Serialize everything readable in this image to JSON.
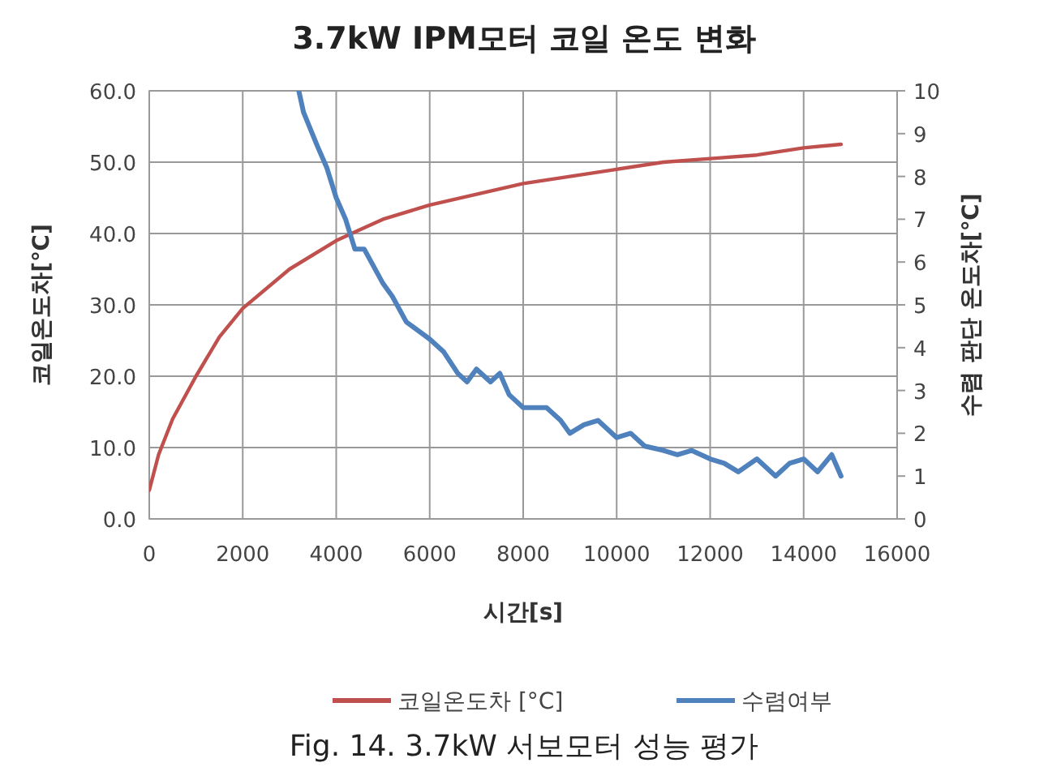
{
  "chart_data": {
    "type": "line",
    "title": "3.7kW IPM모터 코일 온도 변화",
    "xlabel": "시간[s]",
    "ylabel": "코일온도차[℃]",
    "y2label": "수렴 판단 온도차[℃]",
    "xlim": [
      0,
      16000
    ],
    "xticks": [
      0,
      2000,
      4000,
      6000,
      8000,
      10000,
      12000,
      14000,
      16000
    ],
    "ylim": [
      0,
      60
    ],
    "yticks": [
      {
        "value": 0,
        "label": "0.0"
      },
      {
        "value": 10,
        "label": "10.0"
      },
      {
        "value": 20,
        "label": "20.0"
      },
      {
        "value": 30,
        "label": "30.0"
      },
      {
        "value": 40,
        "label": "40.0"
      },
      {
        "value": 50,
        "label": "50.0"
      },
      {
        "value": 60,
        "label": "60.0"
      }
    ],
    "y2lim": [
      0,
      10
    ],
    "y2ticks": [
      0,
      1,
      2,
      3,
      4,
      5,
      6,
      7,
      8,
      9,
      10
    ],
    "grid": true,
    "legend": "bottom",
    "marker": "none",
    "line_style": "solid",
    "annotations": [
      "Fig. 14. 3.7kW 서보모터 성능 평가"
    ],
    "series": [
      {
        "name": "코일온도차 [°C]",
        "color": "#c0504d",
        "x": [
          0,
          200,
          500,
          1000,
          1500,
          2000,
          3000,
          4000,
          4500,
          5000,
          6000,
          7000,
          8000,
          9000,
          10000,
          11000,
          12000,
          13000,
          14000,
          14800
        ],
        "values": [
          4,
          9,
          14,
          20,
          25.5,
          29.5,
          35,
          39,
          40.5,
          42,
          44,
          45.5,
          47,
          48,
          49,
          50,
          50.5,
          51,
          52,
          52.5
        ]
      },
      {
        "name": "수렴여부",
        "color": "#4f81bd",
        "axis": "y2",
        "x": [
          3200,
          3300,
          3600,
          3800,
          4000,
          4200,
          4400,
          4600,
          5000,
          5200,
          5500,
          6000,
          6300,
          6600,
          6800,
          7000,
          7300,
          7500,
          7700,
          8000,
          8500,
          8800,
          9000,
          9300,
          9600,
          10000,
          10300,
          10600,
          11000,
          11300,
          11600,
          12000,
          12300,
          12600,
          13000,
          13400,
          13700,
          14000,
          14300,
          14600,
          14800
        ],
        "values": [
          10,
          9.5,
          8.7,
          8.2,
          7.5,
          7,
          6.3,
          6.3,
          5.5,
          5.2,
          4.6,
          4.2,
          3.9,
          3.4,
          3.2,
          3.5,
          3.2,
          3.4,
          2.9,
          2.6,
          2.6,
          2.3,
          2,
          2.2,
          2.3,
          1.9,
          2,
          1.7,
          1.6,
          1.5,
          1.6,
          1.4,
          1.3,
          1.1,
          1.4,
          1,
          1.3,
          1.4,
          1.1,
          1.5,
          1
        ]
      }
    ]
  }
}
